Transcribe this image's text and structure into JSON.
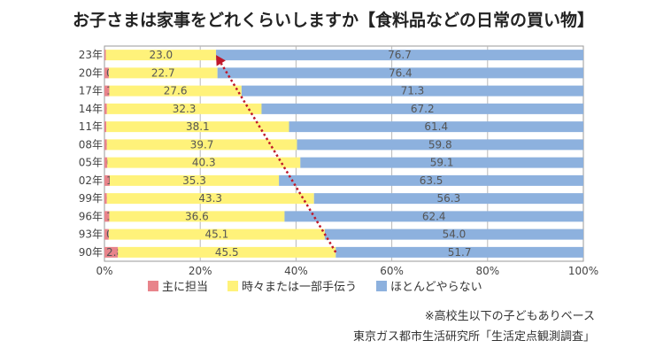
{
  "title": "お子さまは家事をどれくらいしますか【食料品などの日常の買い物】",
  "chart_data": {
    "type": "bar",
    "orientation": "horizontal",
    "stacked": true,
    "categories": [
      "23年",
      "20年",
      "17年",
      "14年",
      "11年",
      "08年",
      "05年",
      "02年",
      "99年",
      "96年",
      "93年",
      "90年"
    ],
    "series": [
      {
        "name": "主に担当",
        "color": "#e8848b",
        "values": [
          0.3,
          0.9,
          1.0,
          0.5,
          0.4,
          0.5,
          0.6,
          1.1,
          0.5,
          1.0,
          0.9,
          2.8
        ]
      },
      {
        "name": "時々または一部手伝う",
        "color": "#fff27a",
        "values": [
          23.0,
          22.7,
          27.6,
          32.3,
          38.1,
          39.7,
          40.3,
          35.3,
          43.3,
          36.6,
          45.1,
          45.5
        ]
      },
      {
        "name": "ほとんどやらない",
        "color": "#8db1de",
        "values": [
          76.7,
          76.4,
          71.3,
          67.2,
          61.4,
          59.8,
          59.1,
          63.5,
          56.3,
          62.4,
          54.0,
          51.7
        ]
      }
    ],
    "labels": [
      [
        "0.3",
        "23.0",
        "76.7"
      ],
      [
        "0.9",
        "22.7",
        "76.4"
      ],
      [
        "1.0",
        "27.6",
        "71.3"
      ],
      [
        "0.5",
        "32.3",
        "67.2"
      ],
      [
        "0.4",
        "38.1",
        "61.4"
      ],
      [
        "0.5",
        "39.7",
        "59.8"
      ],
      [
        "0.6",
        "40.3",
        "59.1"
      ],
      [
        "1.1",
        "35.3",
        "63.5"
      ],
      [
        "0.5",
        "43.3",
        "56.3"
      ],
      [
        "1.0",
        "36.6",
        "62.4"
      ],
      [
        "0.9",
        "45.1",
        "54.0"
      ],
      [
        "2.8",
        "45.5",
        "51.7"
      ]
    ],
    "xlim": [
      0,
      100
    ],
    "xticks": [
      "0%",
      "20%",
      "40%",
      "60%",
      "80%",
      "100%"
    ],
    "grid": true,
    "legend_position": "bottom",
    "trend_arrow": {
      "from_category": "90年",
      "to_category": "23年",
      "color": "#c0182a",
      "style": "dotted"
    }
  },
  "note": "※高校生以下の子どもありベース",
  "source": "東京ガス都市生活研究所「生活定点観測調査」"
}
